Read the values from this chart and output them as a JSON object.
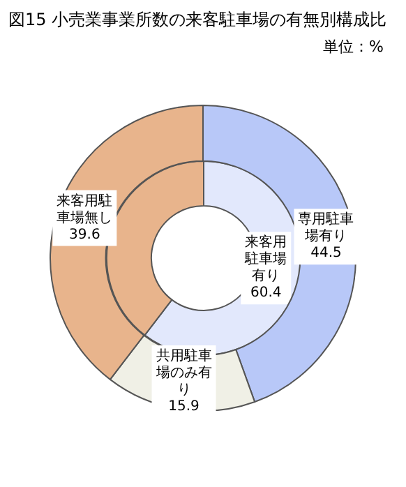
{
  "chart_data": [
    {
      "type": "donut",
      "title": "図15 小売業事業所数の来客駐車場の有無別構成比",
      "subtitle": "単位：%",
      "data_labels": true,
      "categories": [
        "専用駐車場有り",
        "共用駐車場のみ有り",
        "来客用駐車場無し"
      ],
      "values": [
        44.5,
        15.9,
        39.6
      ],
      "colors": [
        "#b8c8f8",
        "#f0f0e6",
        "#e8b48c"
      ]
    },
    {
      "type": "donut",
      "categories": [
        "来客用駐車場有り",
        null
      ],
      "values": [
        60.4,
        39.6
      ],
      "value_labels": [
        "60.4",
        null
      ],
      "colors": [
        "#e2e8fc",
        "#e8b48c"
      ]
    }
  ]
}
